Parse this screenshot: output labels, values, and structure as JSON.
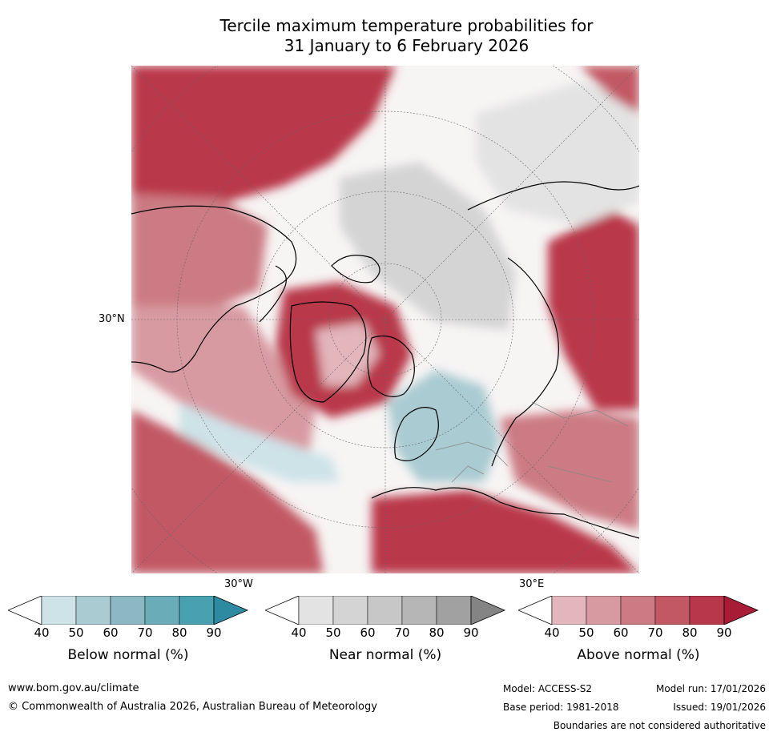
{
  "title": {
    "line1": "Tercile maximum temperature probabilities for",
    "line2": "31 January to 6 February 2026"
  },
  "map": {
    "lat_label": "30°N",
    "lon_label_left": "30°W",
    "lon_label_right": "30°E",
    "colors": {
      "below": [
        "#cde3e8",
        "#a9cbd1",
        "#8bb8c3",
        "#6aacb8",
        "#48a0b0",
        "#2e8aa0"
      ],
      "near": [
        "#e3e3e3",
        "#d4d4d4",
        "#c7c7c7",
        "#b6b6b6",
        "#a1a1a1",
        "#848484"
      ],
      "above": [
        "#e2b6bb",
        "#d89aa1",
        "#cc7a83",
        "#c25864",
        "#b9374a",
        "#a81c36"
      ]
    }
  },
  "colorbars": [
    {
      "id": "below",
      "label": "Below normal (%)",
      "ticks": [
        "40",
        "50",
        "60",
        "70",
        "80",
        "90"
      ]
    },
    {
      "id": "near",
      "label": "Near normal (%)",
      "ticks": [
        "40",
        "50",
        "60",
        "70",
        "80",
        "90"
      ]
    },
    {
      "id": "above",
      "label": "Above normal (%)",
      "ticks": [
        "40",
        "50",
        "60",
        "70",
        "80",
        "90"
      ]
    }
  ],
  "footer": {
    "website": "www.bom.gov.au/climate",
    "copyright": "© Commonwealth of Australia 2026, Australian Bureau of Meteorology",
    "model": "Model: ACCESS-S2",
    "base_period": "Base period: 1981-2018",
    "model_run": "Model run: 17/01/2026",
    "issued": "Issued: 19/01/2026",
    "disclaimer": "Boundaries are not considered authoritative"
  }
}
